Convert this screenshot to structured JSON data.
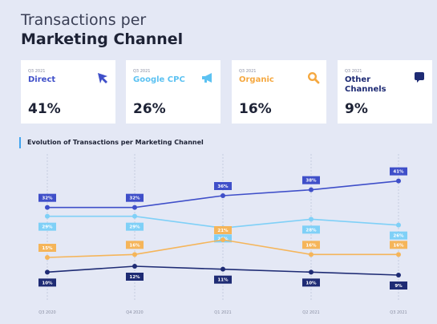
{
  "header": {
    "title_line1": "Transactions per",
    "title_line2": "Marketing Channel"
  },
  "cards": [
    {
      "period": "Q3 2021",
      "name": "Direct",
      "value": "41%",
      "icon": "cursor-arrow-icon",
      "color": "#3f4fc9"
    },
    {
      "period": "Q3 2021",
      "name": "Google CPC",
      "value": "26%",
      "icon": "megaphone-icon",
      "color": "#5cc2f2"
    },
    {
      "period": "Q3 2021",
      "name": "Organic",
      "value": "16%",
      "icon": "search-icon",
      "color": "#f5a840"
    },
    {
      "period": "Q3 2021",
      "name": "Other Channels",
      "value": "9%",
      "icon": "chat-bubble-icon",
      "color": "#1e2b74"
    }
  ],
  "section": {
    "title": "Evolution of Transactions per Marketing Channel"
  },
  "chart_data": {
    "type": "line",
    "title": "Evolution of Transactions per Marketing Channel",
    "categories": [
      "Q3 2020",
      "Q4 2020",
      "Q1 2021",
      "Q2 2021",
      "Q3 2021"
    ],
    "ylim": [
      0,
      45
    ],
    "grid": "vertical dashed",
    "series": [
      {
        "name": "Direct",
        "color": "#3f4fc9",
        "values": [
          32,
          32,
          36,
          38,
          41
        ],
        "label_pos": "above"
      },
      {
        "name": "Google CPC",
        "color": "#7fd0f7",
        "values": [
          29,
          29,
          25,
          28,
          26
        ],
        "label_pos": "below"
      },
      {
        "name": "Organic",
        "color": "#f5b55a",
        "values": [
          15,
          16,
          21,
          16,
          16
        ],
        "label_pos": "above"
      },
      {
        "name": "Other Channels",
        "color": "#1e2b74",
        "values": [
          10,
          12,
          11,
          10,
          9
        ],
        "label_pos": "below"
      }
    ]
  }
}
